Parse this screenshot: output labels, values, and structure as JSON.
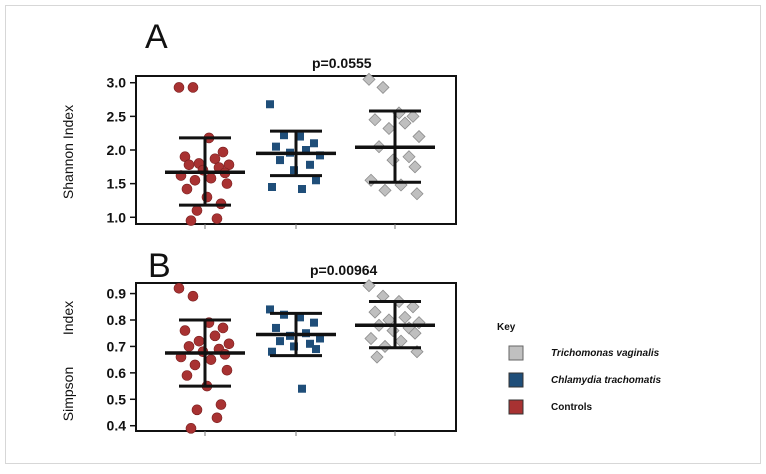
{
  "chart_data": [
    {
      "type": "scatter",
      "panel": "A",
      "pvalue": "p=0.0555",
      "ylabel": "Shannon Index",
      "ylim": [
        0.9,
        3.1
      ],
      "yticks": [
        "3.0",
        "2.5",
        "2.0",
        "1.5",
        "1.0"
      ],
      "categories": [
        "Controls",
        "Chlamydia trachomatis",
        "Trichomonas vaginalis"
      ],
      "series": [
        {
          "name": "Controls",
          "marker": "circle",
          "color": "#a83232",
          "values": [
            2.93,
            2.93,
            2.18,
            1.97,
            1.9,
            1.87,
            1.8,
            1.78,
            1.78,
            1.74,
            1.7,
            1.66,
            1.62,
            1.58,
            1.55,
            1.5,
            1.42,
            1.3,
            1.2,
            1.1,
            0.98,
            0.95
          ],
          "mean": 1.67,
          "sd_low": 1.18,
          "sd_high": 2.18
        },
        {
          "name": "Chlamydia trachomatis",
          "marker": "square",
          "color": "#1f4e79",
          "values": [
            2.68,
            2.22,
            2.2,
            2.1,
            2.05,
            2.0,
            1.96,
            1.92,
            1.85,
            1.78,
            1.7,
            1.55,
            1.45,
            1.42
          ],
          "mean": 1.95,
          "sd_low": 1.62,
          "sd_high": 2.28
        },
        {
          "name": "Trichomonas vaginalis",
          "marker": "diamond",
          "color": "#bfbfbf",
          "values": [
            3.05,
            2.93,
            2.55,
            2.5,
            2.45,
            2.4,
            2.32,
            2.2,
            2.05,
            1.9,
            1.85,
            1.75,
            1.55,
            1.48,
            1.4,
            1.35
          ],
          "mean": 2.04,
          "sd_low": 1.52,
          "sd_high": 2.58
        }
      ]
    },
    {
      "type": "scatter",
      "panel": "B",
      "pvalue": "p=0.00964",
      "ylabel_parts": [
        "Simpson",
        "Index"
      ],
      "ylim": [
        0.38,
        0.94
      ],
      "yticks": [
        "0.9",
        "0.8",
        "0.7",
        "0.6",
        "0.5",
        "0.4"
      ],
      "categories": [
        "Controls",
        "Chlamydia trachomatis",
        "Trichomonas vaginalis"
      ],
      "series": [
        {
          "name": "Controls",
          "marker": "circle",
          "color": "#a83232",
          "values": [
            0.92,
            0.89,
            0.79,
            0.77,
            0.76,
            0.74,
            0.72,
            0.71,
            0.7,
            0.69,
            0.68,
            0.67,
            0.66,
            0.65,
            0.63,
            0.61,
            0.59,
            0.55,
            0.48,
            0.46,
            0.43,
            0.39
          ],
          "mean": 0.675,
          "sd_low": 0.55,
          "sd_high": 0.8
        },
        {
          "name": "Chlamydia trachomatis",
          "marker": "square",
          "color": "#1f4e79",
          "values": [
            0.84,
            0.82,
            0.81,
            0.79,
            0.77,
            0.75,
            0.74,
            0.73,
            0.72,
            0.71,
            0.7,
            0.69,
            0.68,
            0.54
          ],
          "mean": 0.745,
          "sd_low": 0.665,
          "sd_high": 0.825
        },
        {
          "name": "Trichomonas vaginalis",
          "marker": "diamond",
          "color": "#bfbfbf",
          "values": [
            0.93,
            0.89,
            0.87,
            0.85,
            0.83,
            0.81,
            0.8,
            0.79,
            0.78,
            0.77,
            0.76,
            0.75,
            0.73,
            0.72,
            0.7,
            0.68,
            0.66
          ],
          "mean": 0.78,
          "sd_low": 0.695,
          "sd_high": 0.87
        }
      ]
    }
  ],
  "key": {
    "title": "Key",
    "items": [
      {
        "label": "Trichomonas vaginalis",
        "color": "#c0c0c0",
        "italic": true
      },
      {
        "label": "Chlamydia trachomatis",
        "color": "#1f4e79",
        "italic": true
      },
      {
        "label": "Controls",
        "color": "#a83232",
        "italic": false
      }
    ]
  }
}
